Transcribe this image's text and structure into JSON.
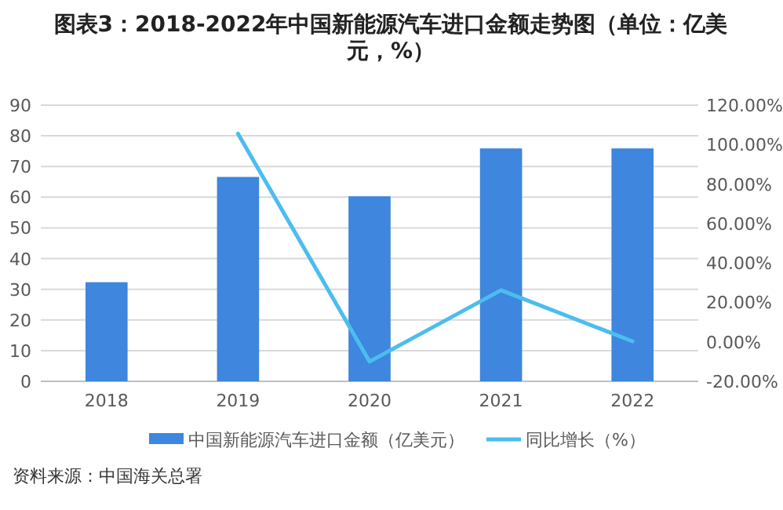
{
  "chart_data": {
    "type": "bar",
    "title": "图表3：2018-2022年中国新能源汽车进口金额走势图（单位：亿美元，%）",
    "categories": [
      "2018",
      "2019",
      "2020",
      "2021",
      "2022"
    ],
    "series": [
      {
        "name": "中国新能源汽车进口金额（亿美元）",
        "color": "#3e86de",
        "values": [
          32.3,
          66.6,
          60.3,
          75.9,
          75.9
        ]
      },
      {
        "name": "同比增长（%）",
        "type": "line",
        "axis": "y2",
        "color": "#4cbdee",
        "values": [
          null,
          105.5,
          -10,
          26.2,
          0.3
        ]
      }
    ],
    "ylim": [
      0,
      90
    ],
    "yticks": [
      0,
      10,
      20,
      30,
      40,
      50,
      60,
      70,
      80,
      90
    ],
    "y2lim": [
      -20,
      120
    ],
    "y2ticks": [
      {
        "value": -20,
        "label": "-20.00%"
      },
      {
        "value": 0,
        "label": "0.00%"
      },
      {
        "value": 20,
        "label": "20.00%"
      },
      {
        "value": 40,
        "label": "40.00%"
      },
      {
        "value": 60,
        "label": "60.00%"
      },
      {
        "value": 80,
        "label": "80.00%"
      },
      {
        "value": 100,
        "label": "100.00%"
      },
      {
        "value": 120,
        "label": "120.00%"
      }
    ],
    "grid": "y",
    "legend": "bottom",
    "annotations": [
      "资料来源：中国海关总署"
    ]
  }
}
